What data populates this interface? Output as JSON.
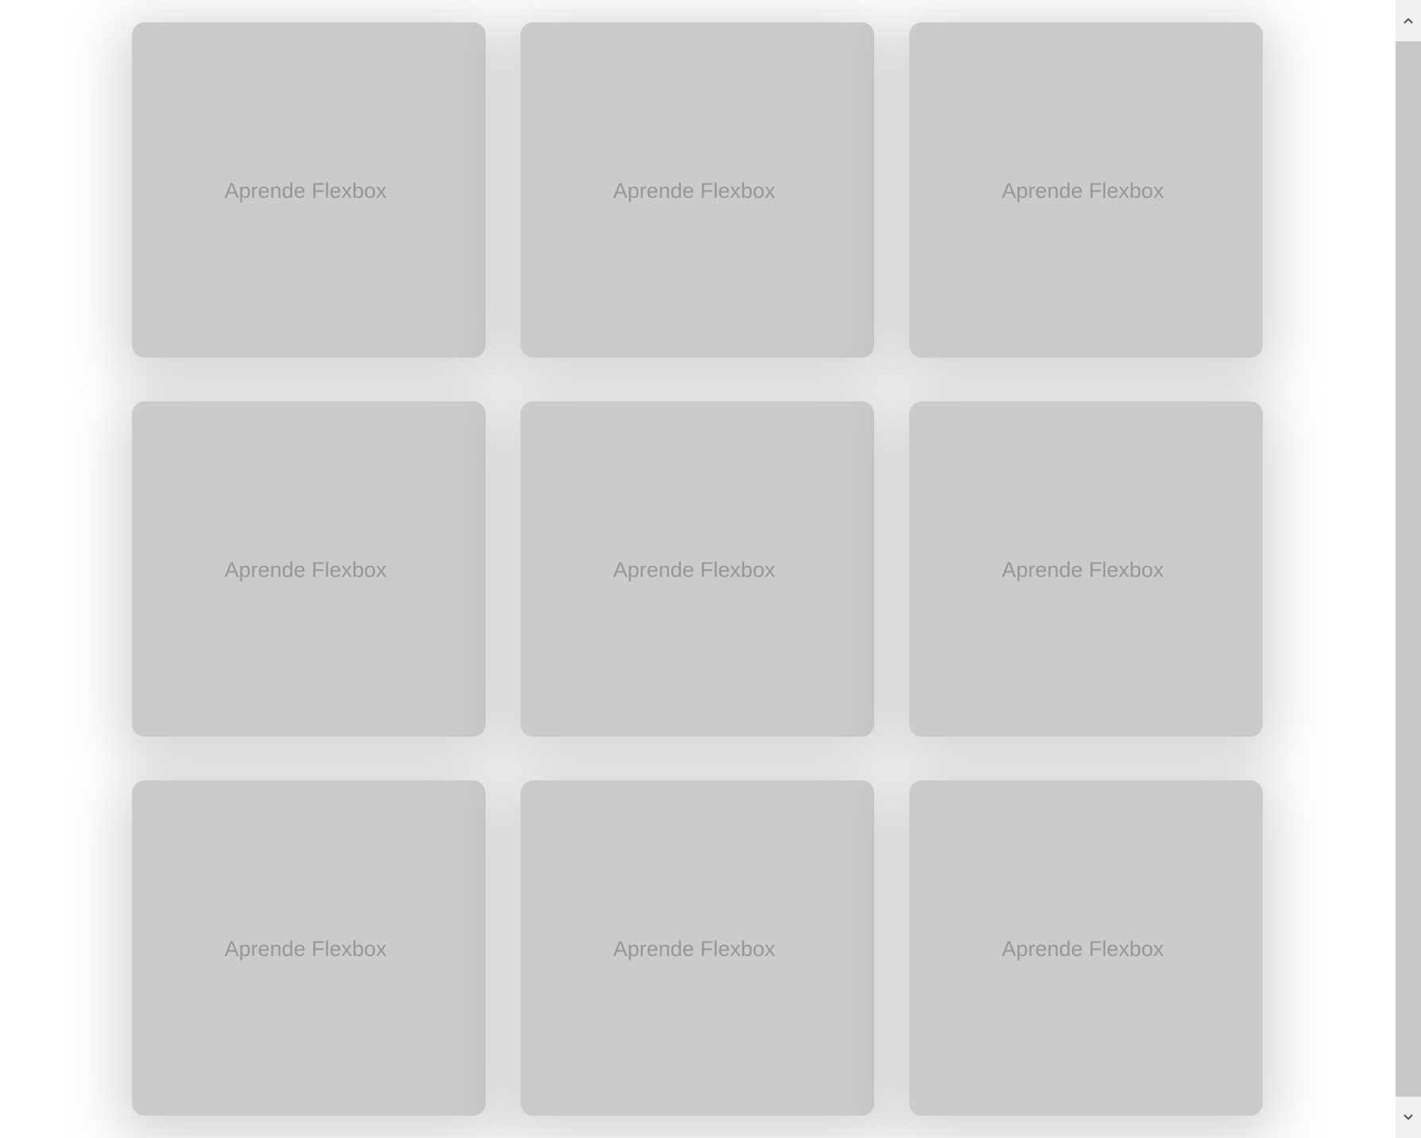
{
  "cards": [
    {
      "label": "Aprende Flexbox"
    },
    {
      "label": "Aprende Flexbox"
    },
    {
      "label": "Aprende Flexbox"
    },
    {
      "label": "Aprende Flexbox"
    },
    {
      "label": "Aprende Flexbox"
    },
    {
      "label": "Aprende Flexbox"
    },
    {
      "label": "Aprende Flexbox"
    },
    {
      "label": "Aprende Flexbox"
    },
    {
      "label": "Aprende Flexbox"
    }
  ],
  "colors": {
    "card_background": "#cbcbcb",
    "card_text": "#979797",
    "page_background": "#ffffff",
    "scrollbar_track": "#f1f1f1",
    "scrollbar_thumb": "#c8c8c8"
  },
  "scrollbar": {
    "up_icon": "chevron-up-icon",
    "down_icon": "chevron-down-icon"
  }
}
